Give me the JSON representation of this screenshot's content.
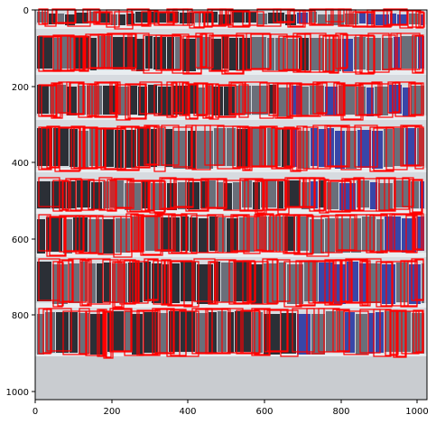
{
  "figure": {
    "image_description": "",
    "x_ticks": [
      "0",
      "200",
      "400",
      "600",
      "800",
      "1000"
    ],
    "y_ticks": [
      "0",
      "200",
      "400",
      "600",
      "800",
      "1000"
    ],
    "colors": {
      "box": "#ff0000",
      "shelf": "#e9edf0",
      "product_dark": "#2b2f36",
      "product_blue": "#3846a8",
      "product_mid": "#6a6f7a",
      "floor": "#c9ccd0",
      "axis": "#000000"
    }
  }
}
